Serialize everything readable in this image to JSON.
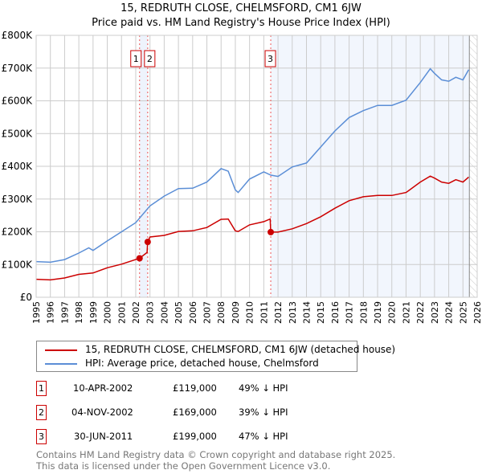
{
  "chart_data": {
    "type": "line",
    "title": "15, REDRUTH CLOSE, CHELMSFORD, CM1 6JW",
    "subtitle": "Price paid vs. HM Land Registry's House Price Index (HPI)",
    "xlabel": "",
    "ylabel": "",
    "xlim": [
      1995,
      2026
    ],
    "ylim": [
      0,
      800000
    ],
    "grid": true,
    "y_ticks": [
      {
        "v": 0,
        "label": "£0"
      },
      {
        "v": 100000,
        "label": "£100K"
      },
      {
        "v": 200000,
        "label": "£200K"
      },
      {
        "v": 300000,
        "label": "£300K"
      },
      {
        "v": 400000,
        "label": "£400K"
      },
      {
        "v": 500000,
        "label": "£500K"
      },
      {
        "v": 600000,
        "label": "£600K"
      },
      {
        "v": 700000,
        "label": "£700K"
      },
      {
        "v": 800000,
        "label": "£800K"
      }
    ],
    "x_ticks": [
      "1995",
      "1996",
      "1997",
      "1998",
      "1999",
      "2000",
      "2001",
      "2002",
      "2003",
      "2004",
      "2005",
      "2006",
      "2007",
      "2008",
      "2009",
      "2010",
      "2011",
      "2012",
      "2013",
      "2014",
      "2015",
      "2016",
      "2017",
      "2018",
      "2019",
      "2020",
      "2021",
      "2022",
      "2023",
      "2024",
      "2025",
      "2026"
    ],
    "series": [
      {
        "name": "15, REDRUTH CLOSE, CHELMSFORD, CM1 6JW (detached house)",
        "color": "#cc0000",
        "x": [
          1995,
          1996,
          1997,
          1998,
          1999,
          2000,
          2001,
          2002.27,
          2002.8,
          2002.84,
          2003,
          2004,
          2005,
          2006,
          2007,
          2008,
          2008.5,
          2009,
          2009.2,
          2010,
          2011,
          2011.45,
          2011.49,
          2012,
          2013,
          2014,
          2015,
          2016,
          2017,
          2018,
          2019,
          2020,
          2021,
          2022,
          2022.7,
          2023,
          2023.5,
          2024,
          2024.5,
          2025,
          2025.4
        ],
        "y": [
          55000,
          53000,
          59000,
          70000,
          74000,
          90000,
          101000,
          119000,
          137000,
          169000,
          184000,
          189000,
          201000,
          203000,
          213000,
          238000,
          239000,
          203000,
          201000,
          221000,
          231000,
          239000,
          199000,
          199000,
          209000,
          225000,
          246000,
          272000,
          295000,
          307000,
          311000,
          311000,
          320000,
          352000,
          370000,
          364000,
          352000,
          348000,
          359000,
          352000,
          367000
        ]
      },
      {
        "name": "HPI: Average price, detached house, Chelmsford",
        "color": "#5b8ed6",
        "x": [
          1995,
          1996,
          1997,
          1998,
          1998.7,
          1999,
          2000,
          2001,
          2002,
          2003,
          2004,
          2005,
          2006,
          2007,
          2008,
          2008.5,
          2009,
          2009.2,
          2010,
          2011,
          2011.5,
          2012,
          2013,
          2014,
          2015,
          2016,
          2017,
          2018,
          2019,
          2020,
          2021,
          2022,
          2022.7,
          2023,
          2023.5,
          2024,
          2024.5,
          2025,
          2025.4
        ],
        "y": [
          109000,
          107000,
          115000,
          135000,
          151000,
          143000,
          172000,
          200000,
          228000,
          279000,
          309000,
          332000,
          333000,
          352000,
          393000,
          385000,
          328000,
          320000,
          361000,
          383000,
          373000,
          369000,
          398000,
          410000,
          459000,
          508000,
          549000,
          570000,
          586000,
          586000,
          602000,
          656000,
          698000,
          684000,
          664000,
          660000,
          672000,
          664000,
          695000
        ]
      }
    ],
    "sales": [
      {
        "id": "1",
        "x": 2002.27,
        "y": 119000,
        "date": "10-APR-2002",
        "price": "£119,000",
        "hpi": "49% ↓ HPI"
      },
      {
        "id": "2",
        "x": 2002.84,
        "y": 169000,
        "date": "04-NOV-2002",
        "price": "£169,000",
        "hpi": "39% ↓ HPI"
      },
      {
        "id": "3",
        "x": 2011.49,
        "y": 199000,
        "date": "30-JUN-2011",
        "price": "£199,000",
        "hpi": "47% ↓ HPI"
      }
    ],
    "data_end": 2025.45,
    "legend_position": "bottom"
  },
  "footer": {
    "line1": "Contains HM Land Registry data © Crown copyright and database right 2025.",
    "line2": "This data is licensed under the Open Government Licence v3.0."
  }
}
